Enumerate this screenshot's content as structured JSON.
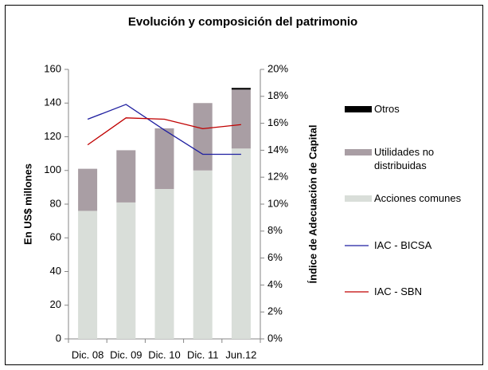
{
  "chart_data": {
    "type": "bar",
    "stacked": true,
    "title": "Evolución y composición del patrimonio",
    "ylabel": "En US$ millones",
    "y2label": "Índice de Adecuación de Capital",
    "categories": [
      "Dic. 08",
      "Dic. 09",
      "Dic. 10",
      "Dic. 11",
      "Jun.12"
    ],
    "series": [
      {
        "name": "Otros",
        "color": "#000000",
        "values": [
          0,
          0,
          0,
          0,
          1
        ]
      },
      {
        "name": "Utilidades no distribuidas",
        "color": "#a99ea4",
        "values": [
          25,
          31,
          36,
          40,
          35
        ]
      },
      {
        "name": "Acciones comunes",
        "color": "#d9ded9",
        "values": [
          76,
          81,
          89,
          100,
          113
        ]
      },
      {
        "name": "IAC - BICSA",
        "color": "#1f1fa0",
        "type": "line",
        "axis": "y2",
        "values": [
          16.3,
          17.4,
          15.5,
          13.7,
          13.7
        ]
      },
      {
        "name": "IAC - SBN",
        "color": "#c00000",
        "type": "line",
        "axis": "y2",
        "values": [
          14.4,
          16.4,
          16.3,
          15.6,
          15.9
        ]
      }
    ],
    "ylim": [
      0,
      160
    ],
    "yticks": [
      0,
      20,
      40,
      60,
      80,
      100,
      120,
      140,
      160
    ],
    "y2lim": [
      0,
      20
    ],
    "y2ticks": [
      {
        "value": 0,
        "label": "0%"
      },
      {
        "value": 2,
        "label": "2%"
      },
      {
        "value": 4,
        "label": "4%"
      },
      {
        "value": 6,
        "label": "6%"
      },
      {
        "value": 8,
        "label": "8%"
      },
      {
        "value": 10,
        "label": "10%"
      },
      {
        "value": 12,
        "label": "12%"
      },
      {
        "value": 14,
        "label": "14%"
      },
      {
        "value": 16,
        "label": "16%"
      },
      {
        "value": 18,
        "label": "18%"
      },
      {
        "value": 20,
        "label": "20%"
      }
    ],
    "grid": false
  }
}
